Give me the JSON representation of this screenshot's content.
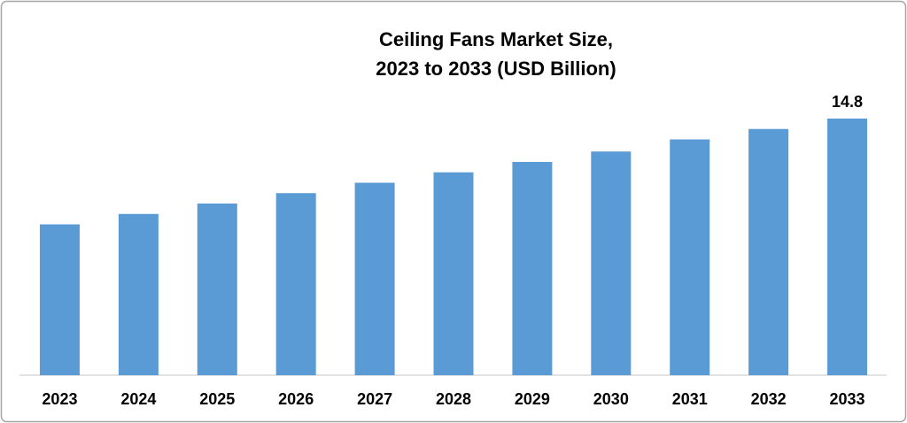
{
  "chart_data": {
    "type": "bar",
    "title": [
      "Ceiling Fans Market Size,",
      "2023 to 2033 (USD Billion)"
    ],
    "categories": [
      "2023",
      "2024",
      "2025",
      "2026",
      "2027",
      "2028",
      "2029",
      "2030",
      "2031",
      "2032",
      "2033"
    ],
    "values": [
      8.7,
      9.3,
      9.9,
      10.5,
      11.1,
      11.7,
      12.3,
      12.9,
      13.6,
      14.2,
      14.8
    ],
    "value_labels": [
      null,
      null,
      null,
      null,
      null,
      null,
      null,
      null,
      null,
      null,
      "14.8"
    ],
    "color": "#5b9bd5"
  }
}
